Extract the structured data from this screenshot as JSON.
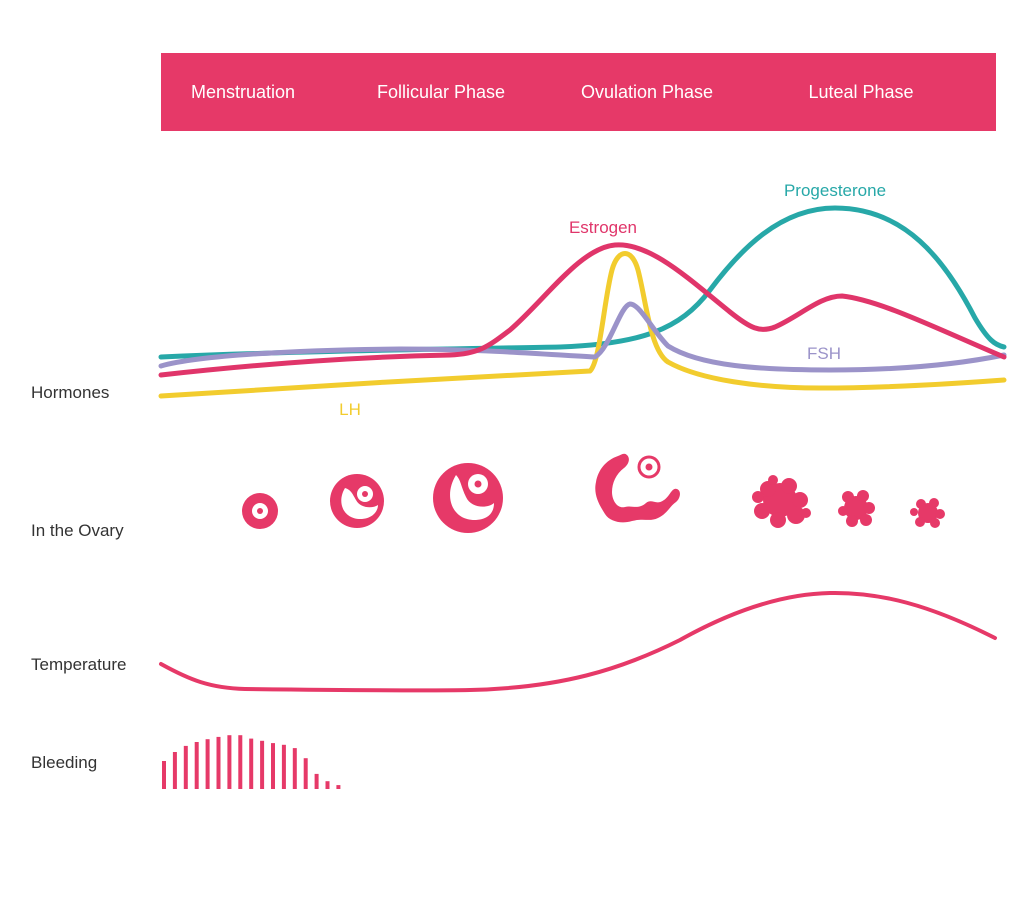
{
  "phases": [
    {
      "label": "Menstruation"
    },
    {
      "label": "Follicular Phase"
    },
    {
      "label": "Ovulation Phase"
    },
    {
      "label": "Luteal Phase"
    }
  ],
  "rows": {
    "hormones": "Hormones",
    "ovary": "In the Ovary",
    "temperature": "Temperature",
    "bleeding": "Bleeding"
  },
  "hormones": {
    "estrogen": {
      "label": "Estrogen",
      "color": "#e0356a"
    },
    "progesterone": {
      "label": "Progesterone",
      "color": "#27a8a8"
    },
    "fsh": {
      "label": "FSH",
      "color": "#9b93c9"
    },
    "lh": {
      "label": "LH",
      "color": "#f2cc2e"
    }
  },
  "colors": {
    "accent": "#e63968",
    "text": "#333333"
  },
  "bleeding_levels": [
    0.5,
    0.66,
    0.77,
    0.84,
    0.89,
    0.93,
    0.96,
    0.96,
    0.9,
    0.86,
    0.82,
    0.79,
    0.73,
    0.55,
    0.27,
    0.14,
    0.07
  ]
}
